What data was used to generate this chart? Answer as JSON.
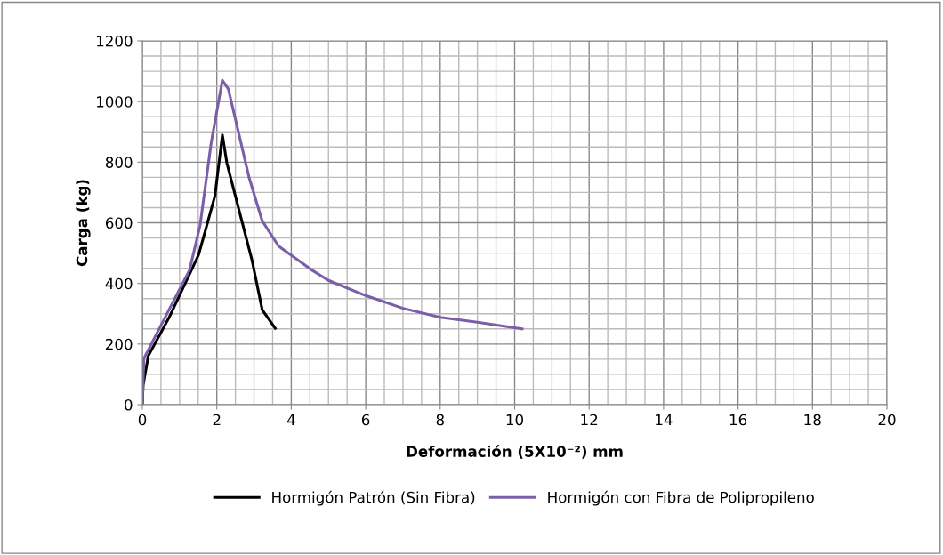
{
  "chart_data": {
    "type": "line",
    "xlabel": "Deformación (5X10⁻²) mm",
    "ylabel": "Carga (kg)",
    "xlim": [
      0,
      20
    ],
    "xticks": [
      0,
      2,
      4,
      6,
      8,
      10,
      12,
      14,
      16,
      18,
      20
    ],
    "ylim": [
      0,
      1200
    ],
    "yticks": [
      0,
      200,
      400,
      600,
      800,
      1000,
      1200
    ],
    "grid": true,
    "legend": "bottom",
    "marker": "none",
    "line_style": "solid",
    "series": [
      {
        "name": "Hormigón Patrón (Sin Fibra)",
        "color": "#000000",
        "x": [
          0,
          0.02,
          0.16,
          0.72,
          1.51,
          1.71,
          1.95,
          2.15,
          2.27,
          2.95,
          3.22,
          3.57
        ],
        "values": [
          0,
          64,
          161,
          288,
          494,
          582,
          689,
          890,
          797,
          474,
          313,
          252
        ]
      },
      {
        "name": "Hormigón con Fibra de Polipropileno",
        "color": "#7a5ea8",
        "x": [
          0,
          0.04,
          0.24,
          1.27,
          1.55,
          1.85,
          2.15,
          2.31,
          2.87,
          3.22,
          3.66,
          4.54,
          5,
          6,
          7,
          8,
          9,
          10.2
        ],
        "values": [
          0,
          152,
          200,
          445,
          591,
          865,
          1070,
          1041,
          748,
          606,
          523,
          445,
          410,
          360,
          318,
          288,
          272,
          250
        ]
      }
    ]
  }
}
